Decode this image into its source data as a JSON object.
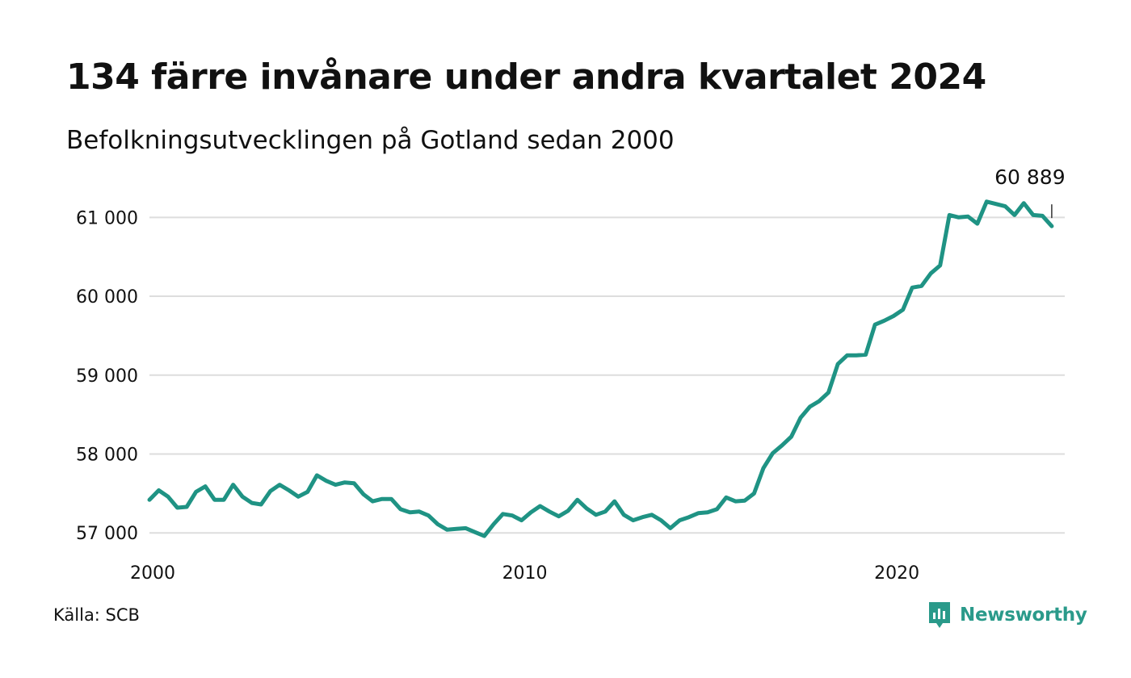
{
  "title": "134 färre invånare under andra kvartalet 2024",
  "subtitle": "Befolkningsutvecklingen på Gotland sedan 2000",
  "source": "Källa: SCB",
  "brand": {
    "name": "Newsworthy",
    "icon": "newsworthy-logo-icon",
    "color": "#2a9a8a"
  },
  "chart_data": {
    "type": "line",
    "title": "134 färre invånare under andra kvartalet 2024",
    "subtitle": "Befolkningsutvecklingen på Gotland sedan 2000",
    "xlabel": "",
    "ylabel": "",
    "xlim": [
      2000,
      2024.6
    ],
    "ylim": [
      56900,
      61300
    ],
    "x_ticks": [
      2000,
      2010,
      2020
    ],
    "x_tick_labels": [
      "2000",
      "2010",
      "2020"
    ],
    "y_ticks": [
      57000,
      58000,
      59000,
      60000,
      61000
    ],
    "y_tick_labels": [
      "57 000",
      "58 000",
      "59 000",
      "60 000",
      "61 000"
    ],
    "grid": "horizontal",
    "line_color": "#1f9384",
    "end_label": "60 889",
    "series": [
      {
        "x": [
          2000.0,
          2000.25,
          2000.5,
          2000.75,
          2001.0,
          2001.25,
          2001.5,
          2001.75,
          2002.0,
          2002.25,
          2002.5,
          2002.75,
          2003.0,
          2003.25,
          2003.5,
          2003.75,
          2004.0,
          2004.25,
          2004.5,
          2004.75,
          2005.0,
          2005.25,
          2005.5,
          2005.75,
          2006.0,
          2006.25,
          2006.5,
          2006.75,
          2007.0,
          2007.25,
          2007.5,
          2007.75,
          2008.0,
          2008.25,
          2008.5,
          2008.75,
          2009.0,
          2009.25,
          2009.5,
          2009.75,
          2010.0,
          2010.25,
          2010.5,
          2010.75,
          2011.0,
          2011.25,
          2011.5,
          2011.75,
          2012.0,
          2012.25,
          2012.5,
          2012.75,
          2013.0,
          2013.25,
          2013.5,
          2013.75,
          2014.0,
          2014.25,
          2014.5,
          2014.75,
          2015.0,
          2015.25,
          2015.5,
          2015.75,
          2016.0,
          2016.25,
          2016.5,
          2016.75,
          2017.0,
          2017.25,
          2017.5,
          2017.75,
          2018.0,
          2018.25,
          2018.5,
          2018.75,
          2019.0,
          2019.25,
          2019.5,
          2019.75,
          2020.0,
          2020.25,
          2020.5,
          2020.75,
          2021.0,
          2021.25,
          2021.5,
          2021.75,
          2022.0,
          2022.25,
          2022.5,
          2022.75,
          2023.0,
          2023.25,
          2023.5,
          2023.75,
          2024.0,
          2024.25
        ],
        "values": [
          57420,
          57540,
          57460,
          57320,
          57330,
          57520,
          57590,
          57420,
          57420,
          57610,
          57460,
          57380,
          57360,
          57530,
          57610,
          57540,
          57460,
          57520,
          57730,
          57660,
          57610,
          57640,
          57630,
          57490,
          57400,
          57430,
          57430,
          57300,
          57260,
          57270,
          57220,
          57110,
          57040,
          57050,
          57060,
          57010,
          56960,
          57110,
          57240,
          57220,
          57160,
          57260,
          57340,
          57270,
          57210,
          57280,
          57420,
          57310,
          57230,
          57270,
          57400,
          57230,
          57160,
          57200,
          57230,
          57160,
          57060,
          57160,
          57200,
          57250,
          57260,
          57300,
          57450,
          57400,
          57410,
          57500,
          57820,
          58010,
          58110,
          58220,
          58460,
          58600,
          58670,
          58780,
          59140,
          59250,
          59250,
          59260,
          59640,
          59690,
          59750,
          59830,
          60110,
          60130,
          60290,
          60390,
          61030,
          61000,
          61010,
          60920,
          61200,
          61170,
          61140,
          61030,
          61180,
          61030,
          61020,
          60889
        ]
      }
    ]
  }
}
